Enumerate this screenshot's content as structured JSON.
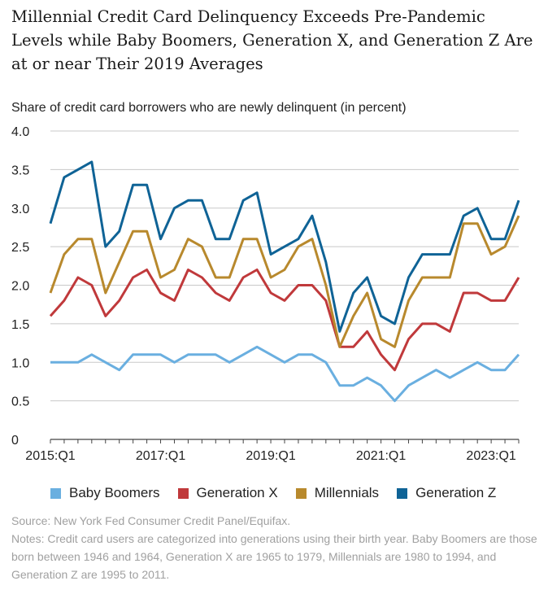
{
  "title": "Millennial Credit Card Delinquency Exceeds Pre-Pandemic Levels while Baby Boomers, Generation X, and Generation Z Are at or near Their 2019 Averages",
  "source": "Source: New York Fed Consumer Credit Panel/Equifax.",
  "notes": "Notes: Credit card users are categorized into generations using their birth year. Baby Boomers are those born between 1946 and 1964, Generation X are 1965 to 1979, Millennials are 1980 to 1994, and Generation Z are 1995 to 2011.",
  "chart_data": {
    "type": "line",
    "title": "Millennial Credit Card Delinquency Exceeds Pre-Pandemic Levels while Baby Boomers, Generation X, and Generation Z Are at or near Their 2019 Averages",
    "ylabel": "Share of credit card borrowers who are newly delinquent (in percent)",
    "xlabel": "",
    "ylim": [
      0,
      4.0
    ],
    "yticks": [
      "0",
      "0.5",
      "1.0",
      "1.5",
      "2.0",
      "2.5",
      "3.0",
      "3.5",
      "4.0"
    ],
    "xtick_labels": [
      "2015:Q1",
      "2017:Q1",
      "2019:Q1",
      "2021:Q1",
      "2023:Q1"
    ],
    "xtick_index": [
      0,
      8,
      16,
      24,
      32
    ],
    "x": [
      "2015:Q1",
      "2015:Q2",
      "2015:Q3",
      "2015:Q4",
      "2016:Q1",
      "2016:Q2",
      "2016:Q3",
      "2016:Q4",
      "2017:Q1",
      "2017:Q2",
      "2017:Q3",
      "2017:Q4",
      "2018:Q1",
      "2018:Q2",
      "2018:Q3",
      "2018:Q4",
      "2019:Q1",
      "2019:Q2",
      "2019:Q3",
      "2019:Q4",
      "2020:Q1",
      "2020:Q2",
      "2020:Q3",
      "2020:Q4",
      "2021:Q1",
      "2021:Q2",
      "2021:Q3",
      "2021:Q4",
      "2022:Q1",
      "2022:Q2",
      "2022:Q3",
      "2022:Q4",
      "2023:Q1",
      "2023:Q2",
      "2023:Q3"
    ],
    "grid": true,
    "legend": "bottom",
    "series": [
      {
        "name": "Baby Boomers",
        "color": "#6aafe0",
        "values": [
          1.0,
          1.0,
          1.0,
          1.1,
          1.0,
          0.9,
          1.1,
          1.1,
          1.1,
          1.0,
          1.1,
          1.1,
          1.1,
          1.0,
          1.1,
          1.2,
          1.1,
          1.0,
          1.1,
          1.1,
          1.0,
          0.7,
          0.7,
          0.8,
          0.7,
          0.5,
          0.7,
          0.8,
          0.9,
          0.8,
          0.9,
          1.0,
          0.9,
          0.9,
          1.1
        ]
      },
      {
        "name": "Generation X",
        "color": "#c0393b",
        "values": [
          1.6,
          1.8,
          2.1,
          2.0,
          1.6,
          1.8,
          2.1,
          2.2,
          1.9,
          1.8,
          2.2,
          2.1,
          1.9,
          1.8,
          2.1,
          2.2,
          1.9,
          1.8,
          2.0,
          2.0,
          1.8,
          1.2,
          1.2,
          1.4,
          1.1,
          0.9,
          1.3,
          1.5,
          1.5,
          1.4,
          1.9,
          1.9,
          1.8,
          1.8,
          2.1
        ]
      },
      {
        "name": "Millennials",
        "color": "#b8892d",
        "values": [
          1.9,
          2.4,
          2.6,
          2.6,
          1.9,
          2.3,
          2.7,
          2.7,
          2.1,
          2.2,
          2.6,
          2.5,
          2.1,
          2.1,
          2.6,
          2.6,
          2.1,
          2.2,
          2.5,
          2.6,
          2.0,
          1.2,
          1.6,
          1.9,
          1.3,
          1.2,
          1.8,
          2.1,
          2.1,
          2.1,
          2.8,
          2.8,
          2.4,
          2.5,
          2.9
        ]
      },
      {
        "name": "Generation Z",
        "color": "#0f6396",
        "values": [
          2.8,
          3.4,
          3.5,
          3.6,
          2.5,
          2.7,
          3.3,
          3.3,
          2.6,
          3.0,
          3.1,
          3.1,
          2.6,
          2.6,
          3.1,
          3.2,
          2.4,
          2.5,
          2.6,
          2.9,
          2.3,
          1.4,
          1.9,
          2.1,
          1.6,
          1.5,
          2.1,
          2.4,
          2.4,
          2.4,
          2.9,
          3.0,
          2.6,
          2.6,
          3.1
        ]
      }
    ]
  }
}
